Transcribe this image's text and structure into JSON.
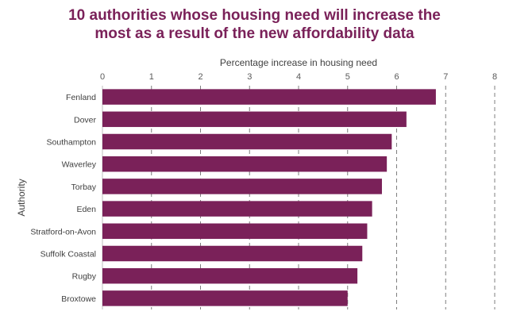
{
  "chart_data": {
    "type": "bar",
    "orientation": "horizontal",
    "title_lines": [
      "10 authorities whose housing need will increase the",
      "most as a result of the new affordability data"
    ],
    "xlabel": "Percentage increase in housing need",
    "ylabel": "Authority",
    "xlim": [
      0,
      8
    ],
    "xticks": [
      "0",
      "1",
      "2",
      "3",
      "4",
      "5",
      "6",
      "7",
      "8"
    ],
    "categories": [
      "Fenland",
      "Dover",
      "Southampton",
      "Waverley",
      "Torbay",
      "Eden",
      "Stratford-on-Avon",
      "Suffolk Coastal",
      "Rugby",
      "Broxtowe"
    ],
    "values": [
      6.8,
      6.2,
      5.9,
      5.8,
      5.7,
      5.5,
      5.4,
      5.3,
      5.2,
      5.0
    ],
    "grid": "vertical dashed",
    "bar_color": "#7a2159",
    "title_color": "#7a2159"
  }
}
